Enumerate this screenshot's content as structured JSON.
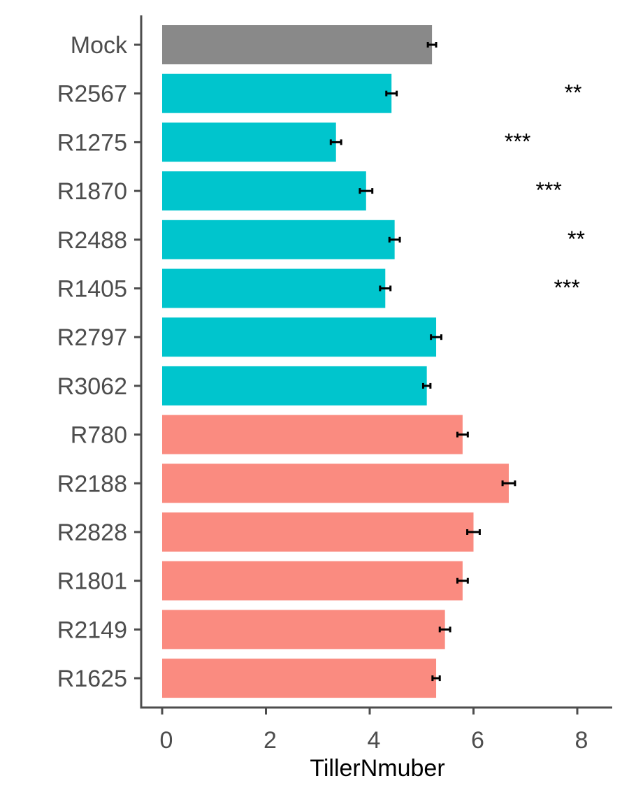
{
  "chart_data": {
    "type": "bar",
    "orientation": "horizontal",
    "title": "",
    "xlabel": "TillerNmuber",
    "ylabel": "",
    "xlim": [
      0,
      8.6
    ],
    "x_ticks": [
      0,
      2,
      4,
      6,
      8
    ],
    "grid": false,
    "legend": "none",
    "categories": [
      "Mock",
      "R2567",
      "R1275",
      "R1870",
      "R2488",
      "R1405",
      "R2797",
      "R3062",
      "R780",
      "R2188",
      "R2828",
      "R1801",
      "R2149",
      "R1625"
    ],
    "values": [
      5.2,
      4.42,
      3.35,
      3.93,
      4.48,
      4.3,
      5.28,
      5.1,
      5.79,
      6.68,
      6.0,
      5.79,
      5.45,
      5.28
    ],
    "errors": [
      0.08,
      0.1,
      0.1,
      0.12,
      0.1,
      0.1,
      0.1,
      0.07,
      0.1,
      0.12,
      0.12,
      0.1,
      0.1,
      0.07
    ],
    "significance": [
      "",
      "**",
      "***",
      "***",
      "**",
      "***",
      "",
      "",
      "*",
      "***",
      "**",
      "*",
      "",
      ""
    ],
    "bar_colors": [
      "#898989",
      "#00c5cd",
      "#00c5cd",
      "#00c5cd",
      "#00c5cd",
      "#00c5cd",
      "#00c5cd",
      "#00c5cd",
      "#fa8b80",
      "#fa8b80",
      "#fa8b80",
      "#fa8b80",
      "#fa8b80",
      "#fa8b80"
    ]
  }
}
